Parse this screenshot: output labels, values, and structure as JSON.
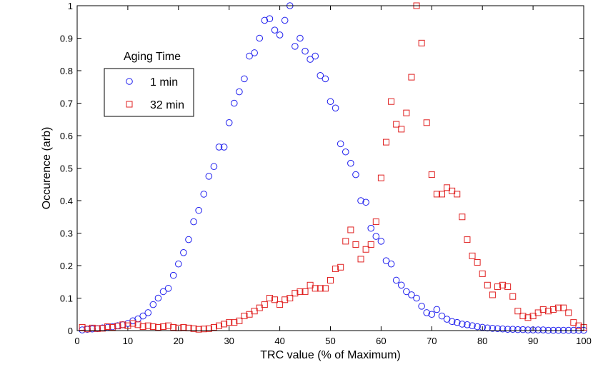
{
  "chart_data": {
    "type": "scatter",
    "title": "",
    "xlabel": "TRC value (% of Maximum)",
    "ylabel": "Occurence (arb)",
    "xlim": [
      0,
      100
    ],
    "ylim": [
      0,
      1
    ],
    "x_ticks": [
      "0",
      "10",
      "20",
      "30",
      "40",
      "50",
      "60",
      "70",
      "80",
      "90",
      "100"
    ],
    "y_ticks": [
      "0",
      "0.1",
      "0.2",
      "0.3",
      "0.4",
      "0.5",
      "0.6",
      "0.7",
      "0.8",
      "0.9",
      "1"
    ],
    "grid": false,
    "legend": {
      "title": "Aging Time",
      "placement": "upper-left",
      "entries": [
        "1 min",
        "32 min"
      ]
    },
    "series": [
      {
        "name": "1 min",
        "marker": "circle",
        "color": "#2020ee",
        "x": [
          1,
          2,
          3,
          4,
          5,
          6,
          7,
          8,
          9,
          10,
          11,
          12,
          13,
          14,
          15,
          16,
          17,
          18,
          19,
          20,
          21,
          22,
          23,
          24,
          25,
          26,
          27,
          28,
          29,
          30,
          31,
          32,
          33,
          34,
          35,
          36,
          37,
          38,
          39,
          40,
          41,
          42,
          43,
          44,
          45,
          46,
          47,
          48,
          49,
          50,
          51,
          52,
          53,
          54,
          55,
          56,
          57,
          58,
          59,
          60,
          61,
          62,
          63,
          64,
          65,
          66,
          67,
          68,
          69,
          70,
          71,
          72,
          73,
          74,
          75,
          76,
          77,
          78,
          79,
          80,
          81,
          82,
          83,
          84,
          85,
          86,
          87,
          88,
          89,
          90,
          91,
          92,
          93,
          94,
          95,
          96,
          97,
          98,
          99,
          100
        ],
        "y": [
          0.002,
          0.004,
          0.005,
          0.006,
          0.008,
          0.01,
          0.012,
          0.015,
          0.018,
          0.022,
          0.03,
          0.036,
          0.045,
          0.055,
          0.08,
          0.1,
          0.12,
          0.13,
          0.17,
          0.205,
          0.24,
          0.28,
          0.335,
          0.37,
          0.42,
          0.475,
          0.505,
          0.565,
          0.565,
          0.64,
          0.7,
          0.735,
          0.775,
          0.845,
          0.855,
          0.9,
          0.955,
          0.96,
          0.925,
          0.91,
          0.955,
          1.0,
          0.875,
          0.9,
          0.86,
          0.835,
          0.845,
          0.785,
          0.775,
          0.705,
          0.685,
          0.575,
          0.55,
          0.515,
          0.48,
          0.4,
          0.395,
          0.315,
          0.29,
          0.275,
          0.215,
          0.205,
          0.155,
          0.14,
          0.12,
          0.11,
          0.1,
          0.075,
          0.055,
          0.05,
          0.065,
          0.045,
          0.035,
          0.028,
          0.025,
          0.02,
          0.018,
          0.015,
          0.012,
          0.01,
          0.008,
          0.007,
          0.006,
          0.005,
          0.004,
          0.004,
          0.003,
          0.003,
          0.002,
          0.002,
          0.002,
          0.002,
          0.001,
          0.001,
          0.001,
          0.001,
          0.001,
          0.001,
          0.001,
          0.001
        ]
      },
      {
        "name": "32 min",
        "marker": "square",
        "color": "#e02020",
        "x": [
          1,
          2,
          3,
          4,
          5,
          6,
          7,
          8,
          9,
          10,
          11,
          12,
          13,
          14,
          15,
          16,
          17,
          18,
          19,
          20,
          21,
          22,
          23,
          24,
          25,
          26,
          27,
          28,
          29,
          30,
          31,
          32,
          33,
          34,
          35,
          36,
          37,
          38,
          39,
          40,
          41,
          42,
          43,
          44,
          45,
          46,
          47,
          48,
          49,
          50,
          51,
          52,
          53,
          54,
          55,
          56,
          57,
          58,
          59,
          60,
          61,
          62,
          63,
          64,
          65,
          66,
          67,
          68,
          69,
          70,
          71,
          72,
          73,
          74,
          75,
          76,
          77,
          78,
          79,
          80,
          81,
          82,
          83,
          84,
          85,
          86,
          87,
          88,
          89,
          90,
          91,
          92,
          93,
          94,
          95,
          96,
          97,
          98,
          99,
          100
        ],
        "y": [
          0.01,
          0.005,
          0.008,
          0.006,
          0.007,
          0.012,
          0.01,
          0.014,
          0.018,
          0.015,
          0.022,
          0.018,
          0.012,
          0.015,
          0.012,
          0.01,
          0.012,
          0.015,
          0.01,
          0.008,
          0.01,
          0.008,
          0.006,
          0.004,
          0.005,
          0.006,
          0.01,
          0.015,
          0.02,
          0.025,
          0.025,
          0.03,
          0.045,
          0.05,
          0.06,
          0.07,
          0.08,
          0.1,
          0.095,
          0.08,
          0.095,
          0.1,
          0.115,
          0.12,
          0.12,
          0.14,
          0.13,
          0.13,
          0.13,
          0.155,
          0.19,
          0.195,
          0.275,
          0.31,
          0.265,
          0.22,
          0.25,
          0.265,
          0.335,
          0.47,
          0.58,
          0.705,
          0.635,
          0.62,
          0.67,
          0.78,
          1.0,
          0.885,
          0.64,
          0.48,
          0.42,
          0.42,
          0.44,
          0.43,
          0.42,
          0.35,
          0.28,
          0.23,
          0.21,
          0.175,
          0.14,
          0.11,
          0.135,
          0.14,
          0.135,
          0.105,
          0.06,
          0.045,
          0.04,
          0.045,
          0.055,
          0.065,
          0.06,
          0.065,
          0.07,
          0.07,
          0.055,
          0.025,
          0.015,
          0.01
        ]
      }
    ]
  }
}
